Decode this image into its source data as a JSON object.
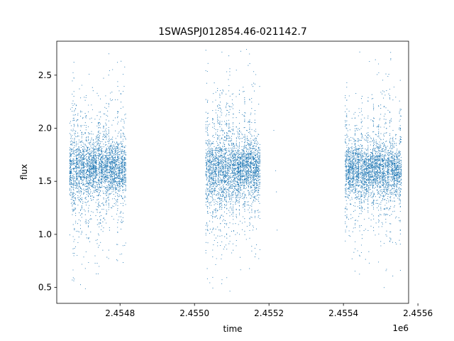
{
  "chart_data": {
    "type": "scatter",
    "title": "1SWASPJ012854.46-021142.7",
    "xlabel": "time",
    "ylabel": "flux",
    "x_offset_label": "1e6",
    "xlim": [
      2454630,
      2455575
    ],
    "ylim": [
      0.35,
      2.82
    ],
    "x_ticks": [
      2.4548,
      2.455,
      2.4552,
      2.4554,
      2.4556
    ],
    "x_tick_labels": [
      "2.4548",
      "2.4550",
      "2.4552",
      "2.4554",
      "2.4556"
    ],
    "y_ticks": [
      0.5,
      1.0,
      1.5,
      2.0,
      2.5
    ],
    "y_tick_labels": [
      "0.5",
      "1.0",
      "1.5",
      "2.0",
      "2.5"
    ],
    "grid": false,
    "marker_color": "#1f77b4",
    "observing_seasons": [
      {
        "x_start": 2454665,
        "x_end": 2454815,
        "flux_center": 1.62,
        "flux_spread": 0.12,
        "flux_min": 0.48,
        "flux_max": 2.75
      },
      {
        "x_start": 2455030,
        "x_end": 2455175,
        "flux_center": 1.61,
        "flux_spread": 0.13,
        "flux_min": 0.45,
        "flux_max": 2.76
      },
      {
        "x_start": 2455405,
        "x_end": 2455555,
        "flux_center": 1.6,
        "flux_spread": 0.12,
        "flux_min": 0.47,
        "flux_max": 2.74
      }
    ],
    "isolated_points": [
      {
        "x": 2455213,
        "y": 1.98
      },
      {
        "x": 2455218,
        "y": 1.6
      },
      {
        "x": 2455220,
        "y": 1.4
      },
      {
        "x": 2455222,
        "y": 1.04
      }
    ]
  }
}
